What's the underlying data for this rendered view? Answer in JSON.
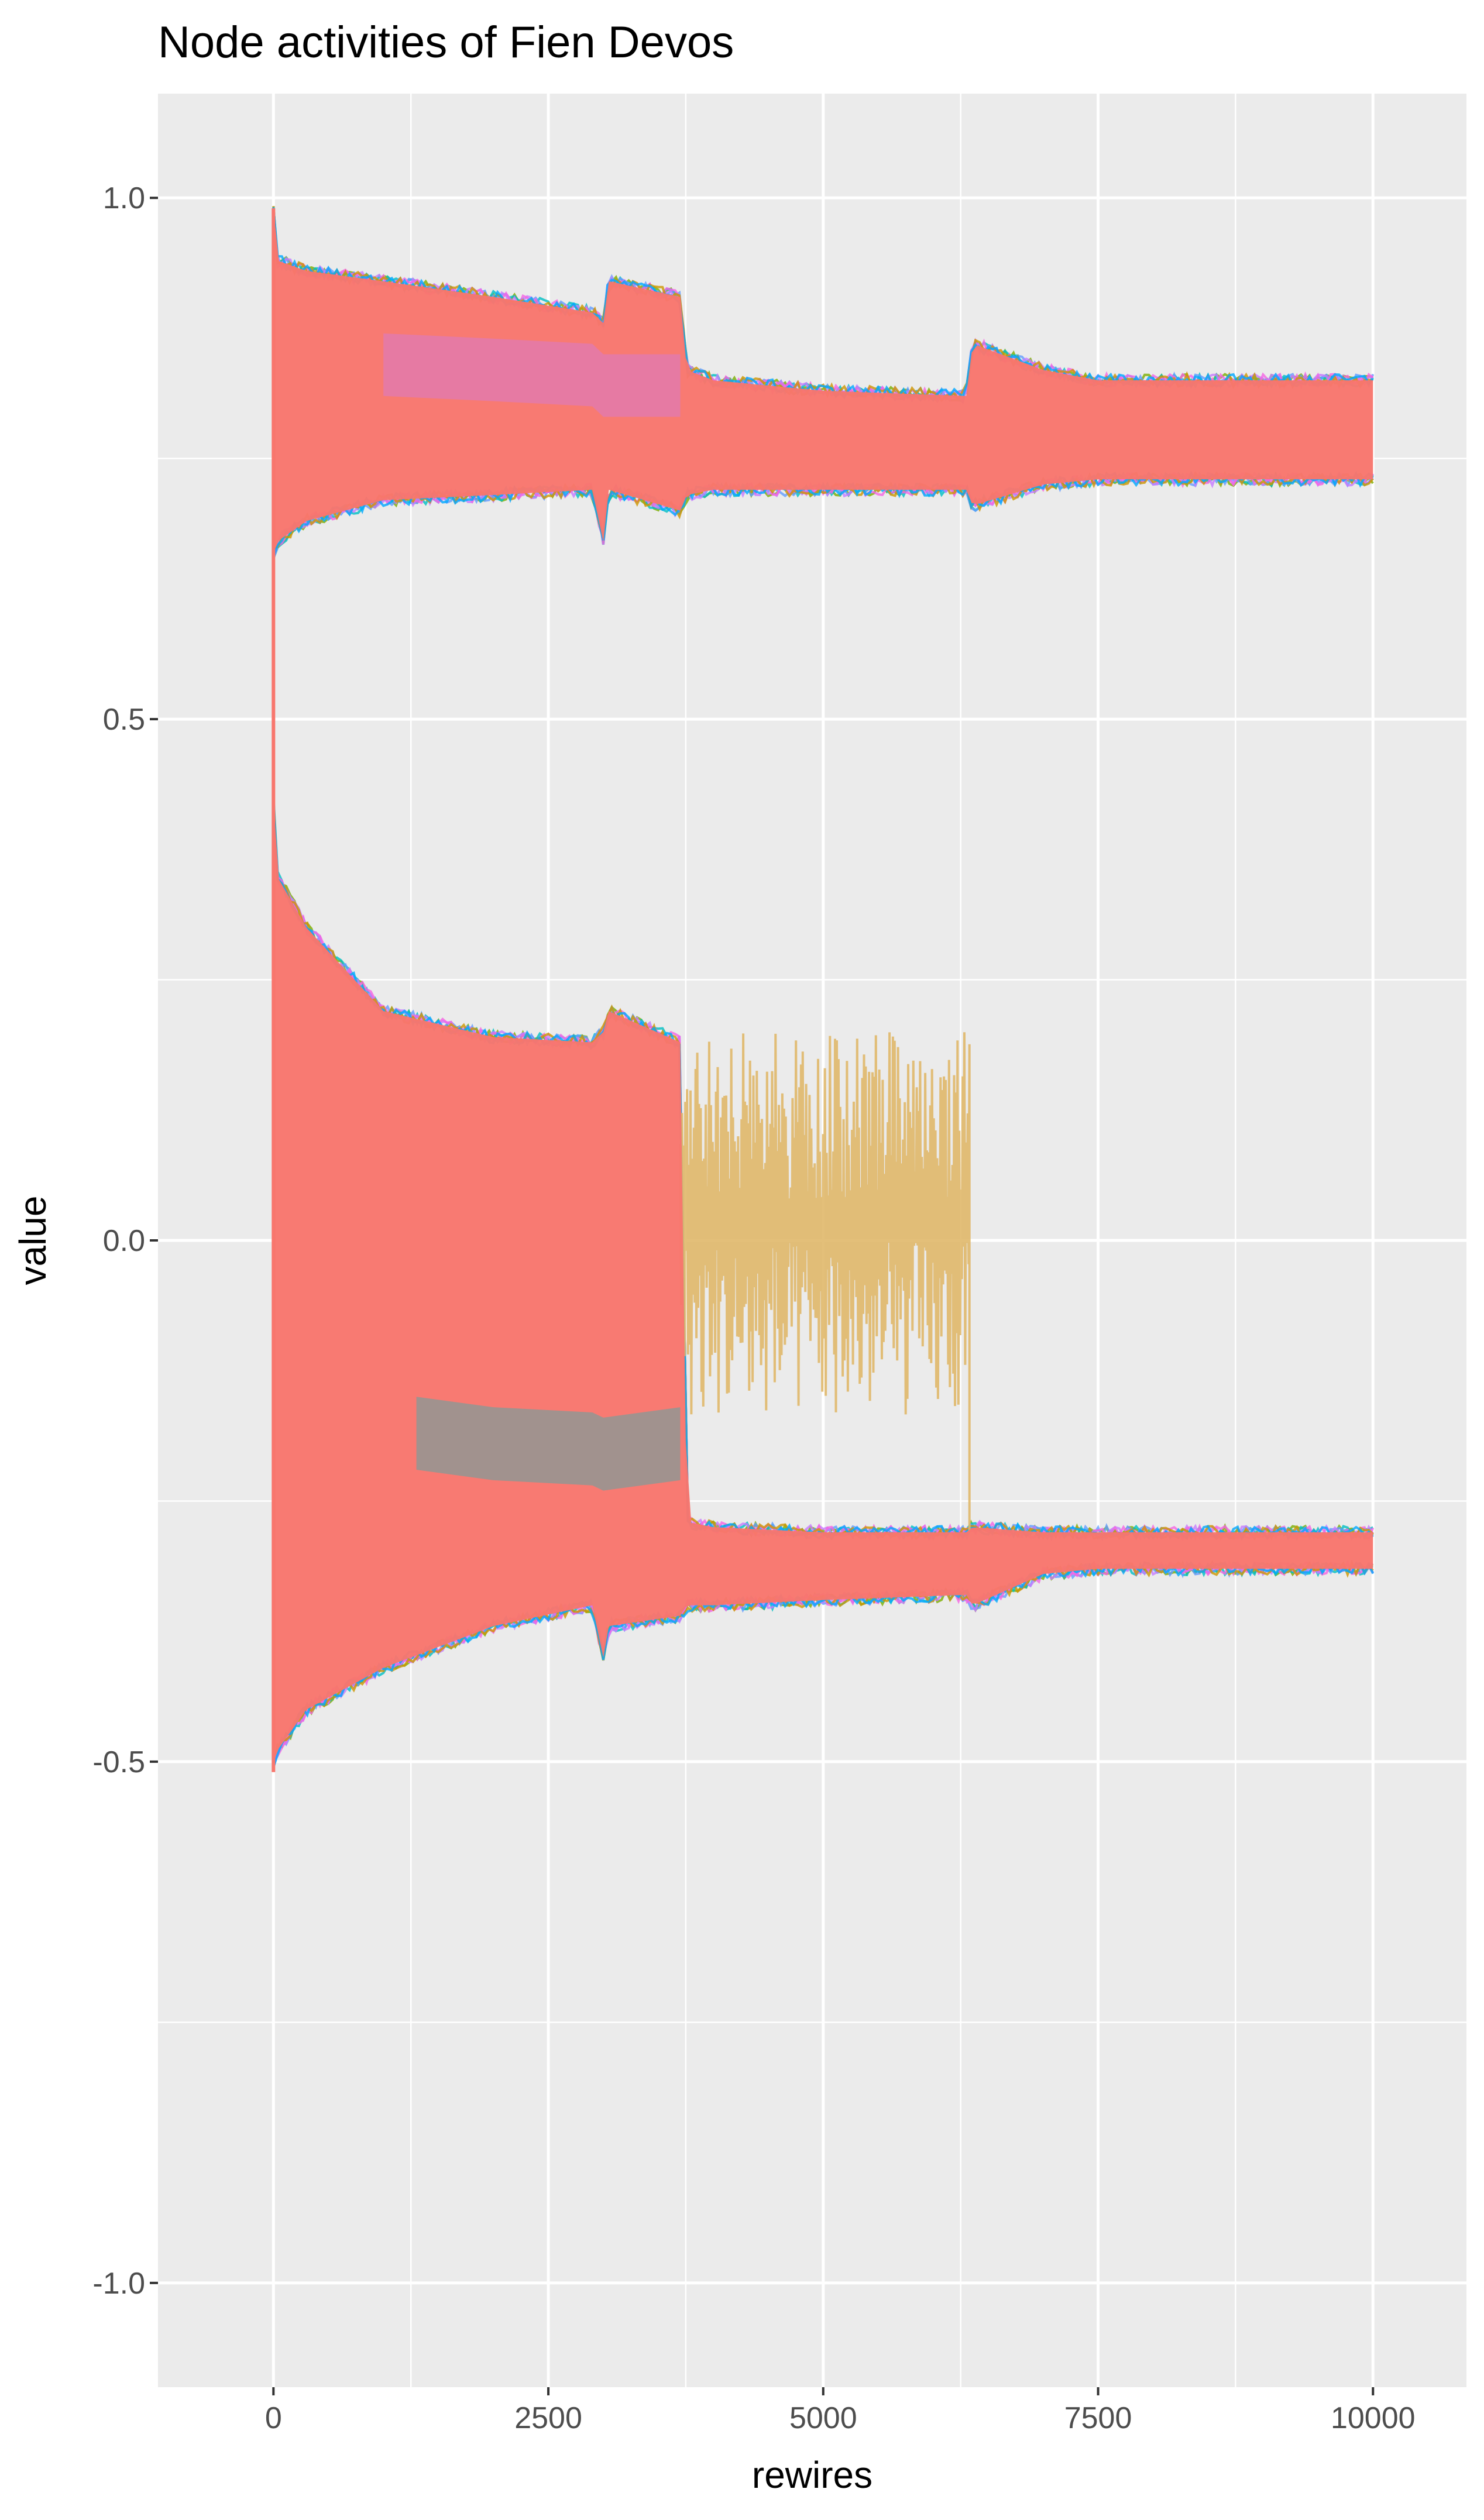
{
  "chart_data": {
    "type": "line",
    "title": "Node activities of Fien Devos",
    "xlabel": "rewires",
    "ylabel": "value",
    "xlim": [
      -1050,
      10850
    ],
    "ylim": [
      -1.1,
      1.1
    ],
    "x_ticks": [
      0,
      2500,
      5000,
      7500,
      10000
    ],
    "x_tick_labels": [
      "0",
      "2500",
      "5000",
      "7500",
      "10000"
    ],
    "y_ticks": [
      -1.0,
      -0.5,
      0.0,
      0.5,
      1.0
    ],
    "y_tick_labels": [
      "-1.0",
      "-0.5",
      "0.0",
      "0.5",
      "1.0"
    ],
    "grid": true,
    "legend": "none",
    "colors": {
      "panel_background": "#EBEBEB",
      "gridline": "#FFFFFF",
      "dominant_series": "#F8766D",
      "highlight_series": "#E0B86A",
      "accent_series": [
        "#7CAE00",
        "#00BFC4",
        "#619CFF",
        "#C77CFF",
        "#F564E3",
        "#CD9600",
        "#00A9FF"
      ]
    },
    "envelopes": {
      "upper_band": {
        "x": [
          0,
          30,
          300,
          1000,
          2000,
          2900,
          3000,
          3050,
          3700,
          3760,
          4000,
          5000,
          6300,
          6360,
          7000,
          7500,
          10000
        ],
        "top": [
          0.99,
          0.94,
          0.93,
          0.92,
          0.905,
          0.89,
          0.88,
          0.92,
          0.905,
          0.835,
          0.825,
          0.815,
          0.81,
          0.86,
          0.835,
          0.825,
          0.825
        ],
        "bottom": [
          0.66,
          0.67,
          0.69,
          0.71,
          0.715,
          0.72,
          0.67,
          0.72,
          0.7,
          0.715,
          0.72,
          0.72,
          0.72,
          0.705,
          0.725,
          0.73,
          0.73
        ]
      },
      "lower_band": {
        "x": [
          0,
          30,
          300,
          1000,
          2000,
          2900,
          3000,
          3050,
          3700,
          3760,
          4000,
          5000,
          6300,
          6360,
          7000,
          7500,
          10000
        ],
        "top": [
          0.42,
          0.35,
          0.3,
          0.22,
          0.195,
          0.19,
          0.2,
          0.22,
          0.19,
          -0.27,
          -0.275,
          -0.28,
          -0.28,
          -0.275,
          -0.28,
          -0.28,
          -0.28
        ],
        "bottom": [
          -0.5,
          -0.49,
          -0.45,
          -0.41,
          -0.37,
          -0.35,
          -0.4,
          -0.37,
          -0.36,
          -0.35,
          -0.35,
          -0.345,
          -0.34,
          -0.35,
          -0.32,
          -0.315,
          -0.315
        ]
      },
      "lower_gap_bottom": {
        "x": [
          1300,
          2000,
          2900,
          3000,
          3700
        ],
        "values": [
          -0.22,
          -0.23,
          -0.235,
          -0.24,
          -0.23
        ]
      },
      "upper_gap_top": {
        "x": [
          1000,
          2000,
          2900,
          3000,
          3700
        ],
        "values": [
          0.81,
          0.805,
          0.8,
          0.79,
          0.79
        ]
      }
    },
    "highlight_series": {
      "x_range": [
        3700,
        6330
      ],
      "y_range": [
        -0.17,
        0.2
      ],
      "drop_at": 6330,
      "drop_to": -0.28
    }
  }
}
